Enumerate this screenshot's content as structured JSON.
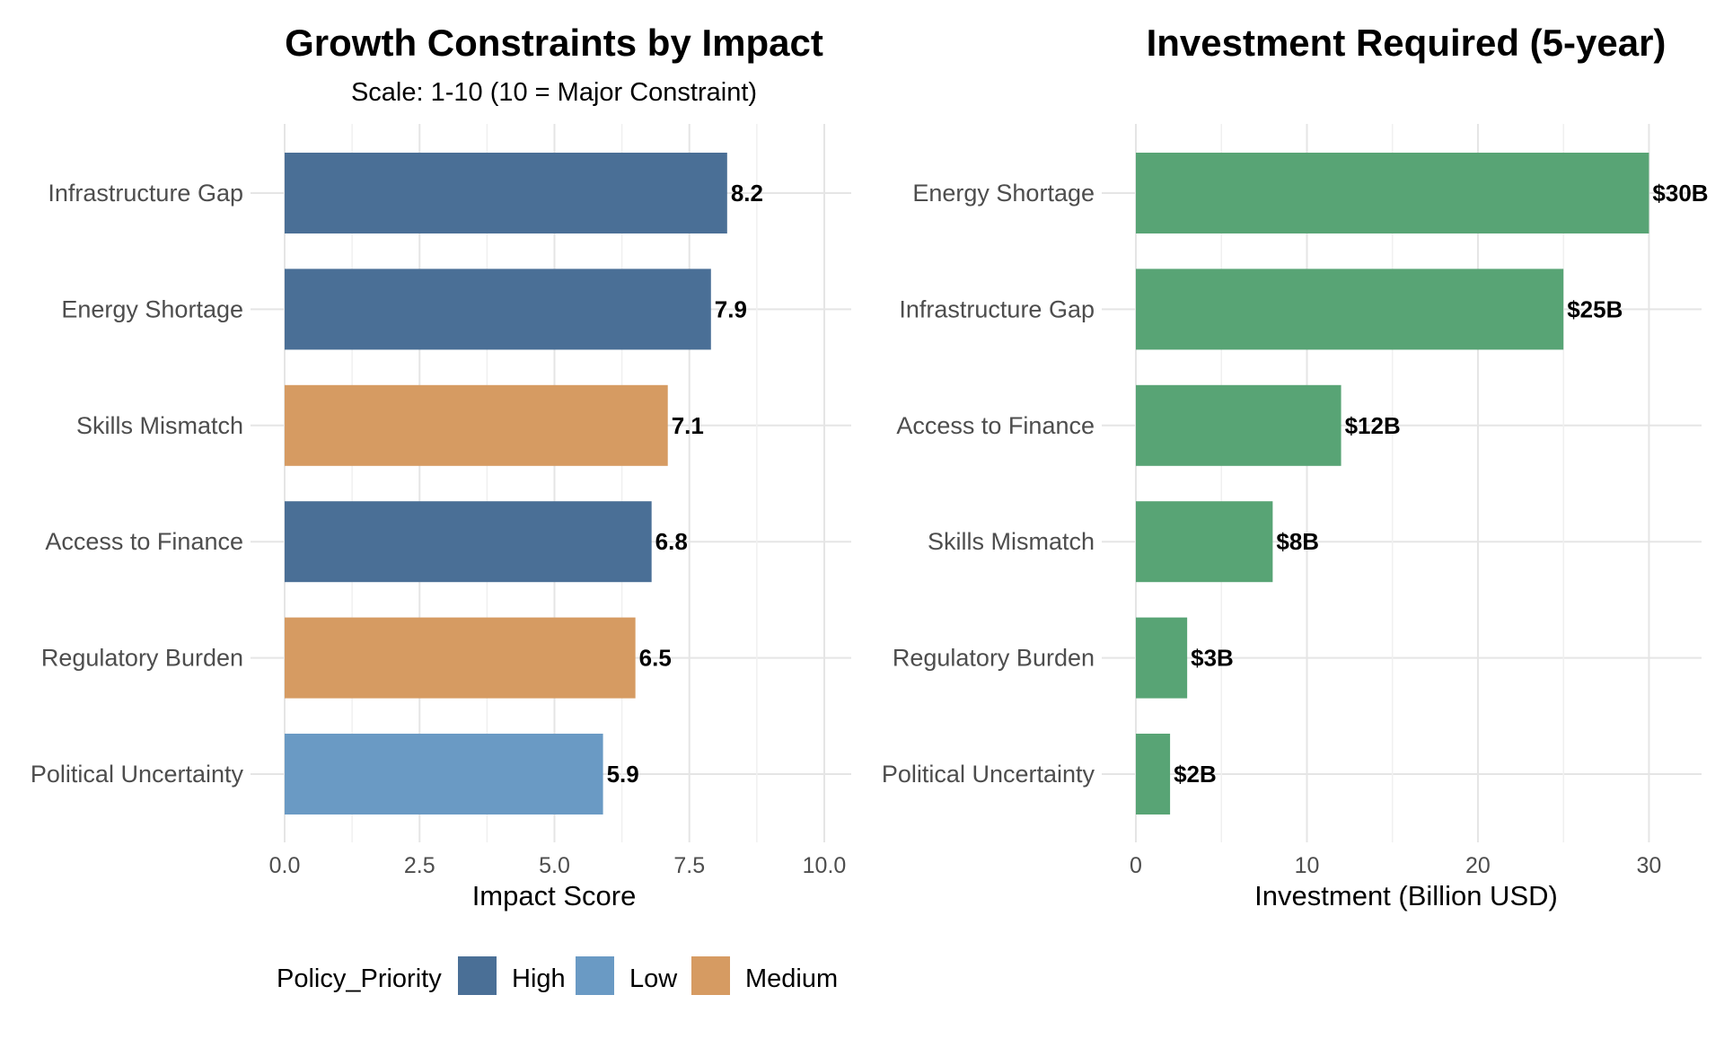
{
  "chart_data": [
    {
      "type": "bar",
      "orientation": "horizontal",
      "title": "Growth Constraints by Impact",
      "subtitle": "Scale: 1-10 (10 = Major Constraint)",
      "xlabel": "Impact Score",
      "ylabel": "",
      "xlim": [
        0,
        10
      ],
      "x_ticks": [
        "0.0",
        "2.5",
        "5.0",
        "7.5",
        "10.0"
      ],
      "grid": true,
      "categories": [
        "Infrastructure Gap",
        "Energy Shortage",
        "Skills Mismatch",
        "Access to Finance",
        "Regulatory Burden",
        "Political Uncertainty"
      ],
      "values": [
        8.2,
        7.9,
        7.1,
        6.8,
        6.5,
        5.9
      ],
      "value_labels": [
        "8.2",
        "7.9",
        "7.1",
        "6.8",
        "6.5",
        "5.9"
      ],
      "priority": [
        "High",
        "High",
        "Medium",
        "High",
        "Medium",
        "Low"
      ],
      "legend": {
        "title": "Policy_Priority",
        "position": "bottom",
        "items": [
          {
            "label": "High",
            "color": "#4a6f96"
          },
          {
            "label": "Low",
            "color": "#6a9ac4"
          },
          {
            "label": "Medium",
            "color": "#d69b62"
          }
        ]
      }
    },
    {
      "type": "bar",
      "orientation": "horizontal",
      "title": "Investment Required (5-year)",
      "xlabel": "Investment (Billion USD)",
      "ylabel": "",
      "xlim": [
        0,
        31.5
      ],
      "x_ticks": [
        "0",
        "10",
        "20",
        "30"
      ],
      "grid": true,
      "categories": [
        "Energy Shortage",
        "Infrastructure Gap",
        "Access to Finance",
        "Skills Mismatch",
        "Regulatory Burden",
        "Political Uncertainty"
      ],
      "values": [
        30,
        25,
        12,
        8,
        3,
        2
      ],
      "value_labels": [
        "$30B",
        "$25B",
        "$12B",
        "$8B",
        "$3B",
        "$2B"
      ],
      "bar_color": "#58a475"
    }
  ]
}
